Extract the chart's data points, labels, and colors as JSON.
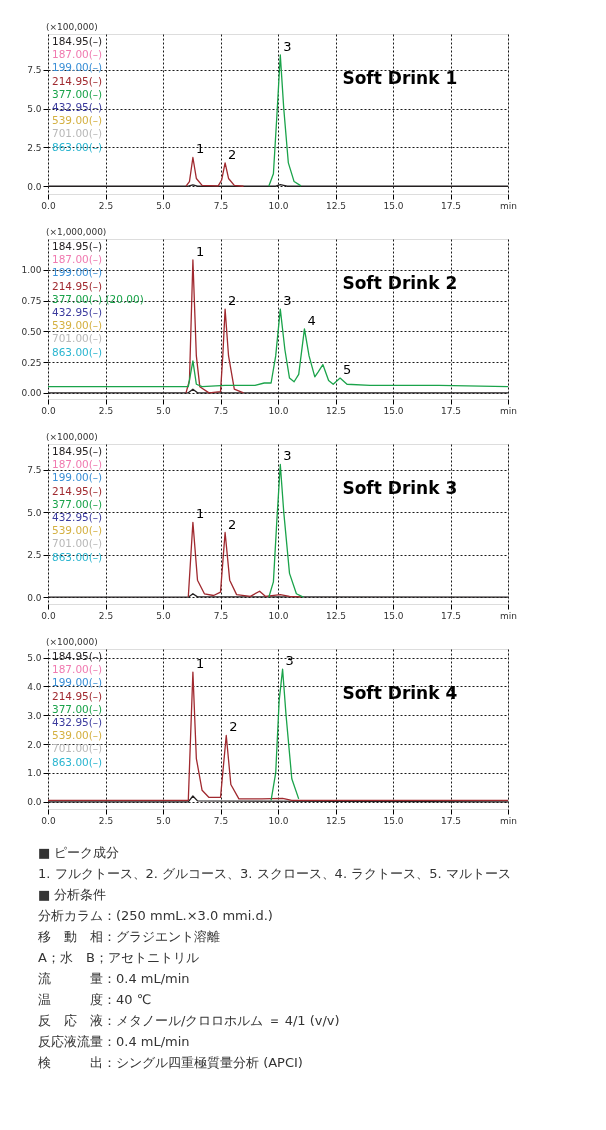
{
  "chart_data": [
    {
      "type": "line",
      "title": "Soft Drink 1",
      "ylabel": "(×100,000)",
      "xlim": [
        0,
        20
      ],
      "ylim": [
        -0.5,
        9.8
      ],
      "xticks": [
        {
          "value": 0,
          "label": "0.0"
        },
        {
          "value": 2.5,
          "label": "2.5"
        },
        {
          "value": 5,
          "label": "5.0"
        },
        {
          "value": 7.5,
          "label": "7.5"
        },
        {
          "value": 10,
          "label": "10.0"
        },
        {
          "value": 12.5,
          "label": "12.5"
        },
        {
          "value": 15,
          "label": "15.0"
        },
        {
          "value": 17.5,
          "label": "17.5"
        },
        {
          "value": 20,
          "label": "min"
        }
      ],
      "yticks": [
        {
          "value": 0,
          "label": "0.0"
        },
        2.5,
        {
          "value": 5,
          "label": "5.0"
        },
        7.5
      ],
      "grid": true,
      "legend": "top left",
      "line_style": "solid",
      "marker": "none",
      "series": [
        {
          "name": "184.95(–)",
          "color": "#231f20",
          "x": [
            0,
            6.1,
            6.3,
            6.5,
            9.9,
            10.1,
            10.4,
            20
          ],
          "values": [
            0,
            0,
            0.08,
            0,
            0,
            0.1,
            0,
            0
          ]
        },
        {
          "name": "187.00(–)",
          "color": "#f07ab0"
        },
        {
          "name": "199.00(–)",
          "color": "#3a8fd6"
        },
        {
          "name": "214.95(–)",
          "color": "#a0292f",
          "x": [
            6.0,
            6.15,
            6.3,
            6.45,
            6.7,
            7.4,
            7.55,
            7.7,
            7.85,
            8.1,
            8.5
          ],
          "values": [
            0,
            0.3,
            1.85,
            0.5,
            0.05,
            0.02,
            0.4,
            1.5,
            0.5,
            0.05,
            0
          ]
        },
        {
          "name": "377.00(–)",
          "color": "#1aa34a",
          "x": [
            9.6,
            9.8,
            9.95,
            10.1,
            10.25,
            10.45,
            10.7,
            11.0
          ],
          "values": [
            0,
            0.8,
            4.5,
            8.45,
            5.0,
            1.5,
            0.3,
            0.02
          ]
        },
        {
          "name": "432.95(–)",
          "color": "#3b3b9e"
        },
        {
          "name": "539.00(–)",
          "color": "#d4b040"
        },
        {
          "name": "701.00(–)",
          "color": "#b8b8b8"
        },
        {
          "name": "863.00(–)",
          "color": "#2ab5d0"
        }
      ],
      "annotations": [
        {
          "text": "1",
          "x": 6.3,
          "y": 1.85
        },
        {
          "text": "2",
          "x": 7.7,
          "y": 1.5
        },
        {
          "text": "3",
          "x": 10.1,
          "y": 8.45
        }
      ]
    },
    {
      "type": "line",
      "title": "Soft Drink 2",
      "ylabel": "(×1,000,000)",
      "xlim": [
        0,
        20
      ],
      "ylim": [
        -0.05,
        1.25
      ],
      "xticks": [
        {
          "value": 0,
          "label": "0.0"
        },
        {
          "value": 2.5,
          "label": "2.5"
        },
        {
          "value": 5,
          "label": "5.0"
        },
        {
          "value": 7.5,
          "label": "7.5"
        },
        {
          "value": 10,
          "label": "10.0"
        },
        {
          "value": 12.5,
          "label": "12.5"
        },
        {
          "value": 15,
          "label": "15.0"
        },
        {
          "value": 17.5,
          "label": "17.5"
        },
        {
          "value": 20,
          "label": "min"
        }
      ],
      "yticks": [
        {
          "value": 0,
          "label": "0.00"
        },
        0.25,
        {
          "value": 0.5,
          "label": "0.50"
        },
        0.75,
        {
          "value": 1,
          "label": "1.00"
        }
      ],
      "grid": true,
      "legend": "top left",
      "line_style": "solid",
      "marker": "none",
      "series": [
        {
          "name": "184.95(–)",
          "color": "#231f20",
          "x": [
            0,
            6.1,
            6.3,
            6.5,
            20
          ],
          "values": [
            0,
            0,
            0.03,
            0,
            0
          ]
        },
        {
          "name": "187.00(–)",
          "color": "#f07ab0"
        },
        {
          "name": "199.00(–)",
          "color": "#3a8fd6"
        },
        {
          "name": "214.95(–)",
          "color": "#a0292f",
          "x": [
            6.0,
            6.15,
            6.3,
            6.45,
            6.6,
            7.0,
            7.5,
            7.6,
            7.7,
            7.85,
            8.1,
            8.5
          ],
          "values": [
            0,
            0.1,
            1.08,
            0.3,
            0.05,
            0,
            0.01,
            0.3,
            0.68,
            0.3,
            0.03,
            0
          ]
        },
        {
          "name": "377.00(–) (20.00)",
          "color": "#1aa34a",
          "x": [
            0,
            5.5,
            6.1,
            6.3,
            6.45,
            6.7,
            7.7,
            9.0,
            9.4,
            9.7,
            9.9,
            10.1,
            10.3,
            10.5,
            10.7,
            10.9,
            11.15,
            11.35,
            11.6,
            11.75,
            11.95,
            12.2,
            12.4,
            12.7,
            13.0,
            14,
            17,
            20
          ],
          "values": [
            0.05,
            0.05,
            0.05,
            0.26,
            0.07,
            0.05,
            0.06,
            0.06,
            0.08,
            0.08,
            0.3,
            0.68,
            0.35,
            0.12,
            0.09,
            0.15,
            0.52,
            0.3,
            0.13,
            0.17,
            0.23,
            0.1,
            0.07,
            0.12,
            0.07,
            0.06,
            0.06,
            0.05
          ]
        },
        {
          "name": "432.95(–)",
          "color": "#3b3b9e"
        },
        {
          "name": "539.00(–)",
          "color": "#d4b040"
        },
        {
          "name": "701.00(–)",
          "color": "#b8b8b8"
        },
        {
          "name": "863.00(–)",
          "color": "#2ab5d0"
        }
      ],
      "annotations": [
        {
          "text": "1",
          "x": 6.3,
          "y": 1.08
        },
        {
          "text": "2",
          "x": 7.7,
          "y": 0.68
        },
        {
          "text": "3",
          "x": 10.1,
          "y": 0.68
        },
        {
          "text": "4",
          "x": 11.15,
          "y": 0.52
        },
        {
          "text": "5",
          "x": 12.7,
          "y": 0.12
        }
      ]
    },
    {
      "type": "line",
      "title": "Soft Drink 3",
      "ylabel": "(×100,000)",
      "xlim": [
        0,
        20
      ],
      "ylim": [
        -0.4,
        9.0
      ],
      "xticks": [
        {
          "value": 0,
          "label": "0.0"
        },
        {
          "value": 2.5,
          "label": "2.5"
        },
        {
          "value": 5,
          "label": "5.0"
        },
        {
          "value": 7.5,
          "label": "7.5"
        },
        {
          "value": 10,
          "label": "10.0"
        },
        {
          "value": 12.5,
          "label": "12.5"
        },
        {
          "value": 15,
          "label": "15.0"
        },
        {
          "value": 17.5,
          "label": "17.5"
        },
        {
          "value": 20,
          "label": "min"
        }
      ],
      "yticks": [
        {
          "value": 0,
          "label": "0.0"
        },
        2.5,
        {
          "value": 5,
          "label": "5.0"
        },
        7.5
      ],
      "grid": true,
      "legend": "top left",
      "line_style": "solid",
      "marker": "none",
      "series": [
        {
          "name": "184.95(–)",
          "color": "#231f20",
          "x": [
            0,
            6.1,
            6.3,
            6.5,
            20
          ],
          "values": [
            0,
            0,
            0.2,
            0.02,
            0
          ]
        },
        {
          "name": "187.00(–)",
          "color": "#f07ab0"
        },
        {
          "name": "199.00(–)",
          "color": "#3a8fd6"
        },
        {
          "name": "214.95(–)",
          "color": "#a0292f",
          "x": [
            6.1,
            6.3,
            6.5,
            6.8,
            7.2,
            7.5,
            7.7,
            7.9,
            8.2,
            8.8,
            9.2,
            9.45,
            10.1,
            10.5,
            11.0
          ],
          "values": [
            0.02,
            4.4,
            1.0,
            0.2,
            0.1,
            0.3,
            3.8,
            1.0,
            0.15,
            0.05,
            0.35,
            0.05,
            0.15,
            0.05,
            0.02
          ]
        },
        {
          "name": "377.00(–)",
          "color": "#1aa34a",
          "x": [
            9.6,
            9.8,
            9.95,
            10.1,
            10.25,
            10.5,
            10.8,
            11.1
          ],
          "values": [
            0,
            0.9,
            4.5,
            7.8,
            5.0,
            1.4,
            0.2,
            0
          ]
        },
        {
          "name": "432.95(–)",
          "color": "#3b3b9e"
        },
        {
          "name": "539.00(–)",
          "color": "#d4b040"
        },
        {
          "name": "701.00(–)",
          "color": "#b8b8b8"
        },
        {
          "name": "863.00(–)",
          "color": "#2ab5d0"
        }
      ],
      "annotations": [
        {
          "text": "1",
          "x": 6.3,
          "y": 4.4
        },
        {
          "text": "2",
          "x": 7.7,
          "y": 3.8
        },
        {
          "text": "3",
          "x": 10.1,
          "y": 7.8
        }
      ]
    },
    {
      "type": "line",
      "title": "Soft Drink 4",
      "ylabel": "(×100,000)",
      "xlim": [
        0,
        20
      ],
      "ylim": [
        -0.25,
        5.3
      ],
      "xticks": [
        {
          "value": 0,
          "label": "0.0"
        },
        {
          "value": 2.5,
          "label": "2.5"
        },
        {
          "value": 5,
          "label": "5.0"
        },
        {
          "value": 7.5,
          "label": "7.5"
        },
        {
          "value": 10,
          "label": "10.0"
        },
        {
          "value": 12.5,
          "label": "12.5"
        },
        {
          "value": 15,
          "label": "15.0"
        },
        {
          "value": 17.5,
          "label": "17.5"
        },
        {
          "value": 20,
          "label": "min"
        }
      ],
      "yticks": [
        {
          "value": 0,
          "label": "0.0"
        },
        {
          "value": 1,
          "label": "1.0"
        },
        {
          "value": 2,
          "label": "2.0"
        },
        {
          "value": 3,
          "label": "3.0"
        },
        {
          "value": 4,
          "label": "4.0"
        },
        {
          "value": 5,
          "label": "5.0"
        }
      ],
      "grid": true,
      "legend": "top left",
      "line_style": "solid",
      "marker": "none",
      "series": [
        {
          "name": "184.95(–)",
          "color": "#231f20",
          "x": [
            0,
            6.1,
            6.3,
            6.5,
            20
          ],
          "values": [
            0.0,
            0.0,
            0.2,
            0.03,
            0.0
          ]
        },
        {
          "name": "187.00(–)",
          "color": "#f07ab0"
        },
        {
          "name": "199.00(–)",
          "color": "#3a8fd6"
        },
        {
          "name": "214.95(–)",
          "color": "#a0292f",
          "x": [
            0,
            6.1,
            6.3,
            6.45,
            6.7,
            7.0,
            7.5,
            7.75,
            7.95,
            8.3,
            9.3,
            10.2,
            10.6,
            20
          ],
          "values": [
            0.05,
            0.05,
            4.5,
            1.5,
            0.4,
            0.15,
            0.15,
            2.3,
            0.6,
            0.1,
            0.1,
            0.12,
            0.05,
            0.05
          ]
        },
        {
          "name": "377.00(–)",
          "color": "#1aa34a",
          "x": [
            9.7,
            9.9,
            10.05,
            10.2,
            10.35,
            10.6,
            10.9
          ],
          "values": [
            0.05,
            1.0,
            3.5,
            4.6,
            3.0,
            0.8,
            0.1
          ]
        },
        {
          "name": "432.95(–)",
          "color": "#3b3b9e"
        },
        {
          "name": "539.00(–)",
          "color": "#d4b040"
        },
        {
          "name": "701.00(–)",
          "color": "#b8b8b8"
        },
        {
          "name": "863.00(–)",
          "color": "#2ab5d0"
        }
      ],
      "annotations": [
        {
          "text": "1",
          "x": 6.3,
          "y": 4.5
        },
        {
          "text": "2",
          "x": 7.75,
          "y": 2.3
        },
        {
          "text": "3",
          "x": 10.2,
          "y": 4.6
        }
      ]
    },
    {
      "type": "other",
      "annotations": [
        "■ ピーク成分",
        "1. フルクトース、2. グルコース、3. スクロース、4. ラクトース、5. マルトース",
        "■ 分析条件",
        "分析カラム：(250 mmL.×3.0 mmi.d.)",
        "移　動　相：グラジエント溶離",
        "　　　　　　A；水　B；アセトニトリル",
        "流　　　量：0.4 mL/min",
        "温　　　度：40 ℃",
        "反　応　液：メタノール/クロロホルム ＝ 4/1 (v/v)",
        "反応液流量：0.4 mL/min",
        "検　　　出：シングル四重極質量分析 (APCI)"
      ]
    }
  ]
}
